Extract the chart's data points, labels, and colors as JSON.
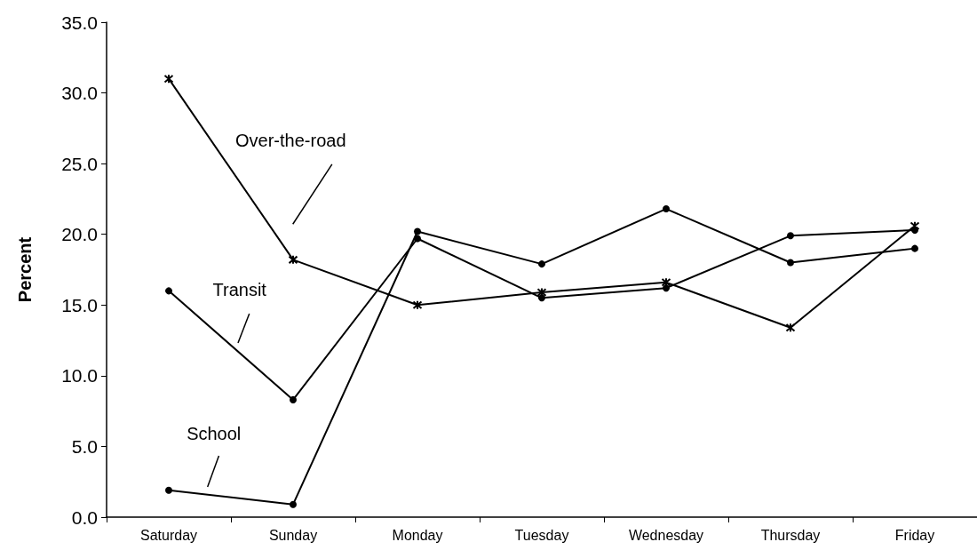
{
  "chart_data": {
    "type": "line",
    "ylabel": "Percent",
    "categories": [
      "Saturday",
      "Sunday",
      "Monday",
      "Tuesday",
      "Wednesday",
      "Thursday",
      "Friday"
    ],
    "series": [
      {
        "name": "Over-the-road",
        "color": "#000000",
        "marker": "cross",
        "values": [
          31.0,
          18.2,
          15.0,
          15.9,
          16.6,
          13.4,
          20.6
        ]
      },
      {
        "name": "Transit",
        "color": "#000000",
        "marker": "circle",
        "values": [
          16.0,
          8.3,
          19.7,
          15.5,
          16.2,
          19.9,
          20.3
        ]
      },
      {
        "name": "School",
        "color": "#000000",
        "marker": "circle",
        "values": [
          1.9,
          0.9,
          20.2,
          17.9,
          21.8,
          18.0,
          19.0
        ]
      }
    ],
    "ylim": [
      0,
      35
    ],
    "yticks": [
      {
        "value": 0,
        "label": "0.0"
      },
      {
        "value": 5,
        "label": "5.0"
      },
      {
        "value": 10,
        "label": "10.0"
      },
      {
        "value": 15,
        "label": "15.0"
      },
      {
        "value": 20,
        "label": "20.0"
      },
      {
        "value": 25,
        "label": "25.0"
      },
      {
        "value": 30,
        "label": "30.0"
      },
      {
        "value": 35,
        "label": "35.0"
      }
    ],
    "grid": false,
    "legend": false,
    "line_style": "solid"
  }
}
